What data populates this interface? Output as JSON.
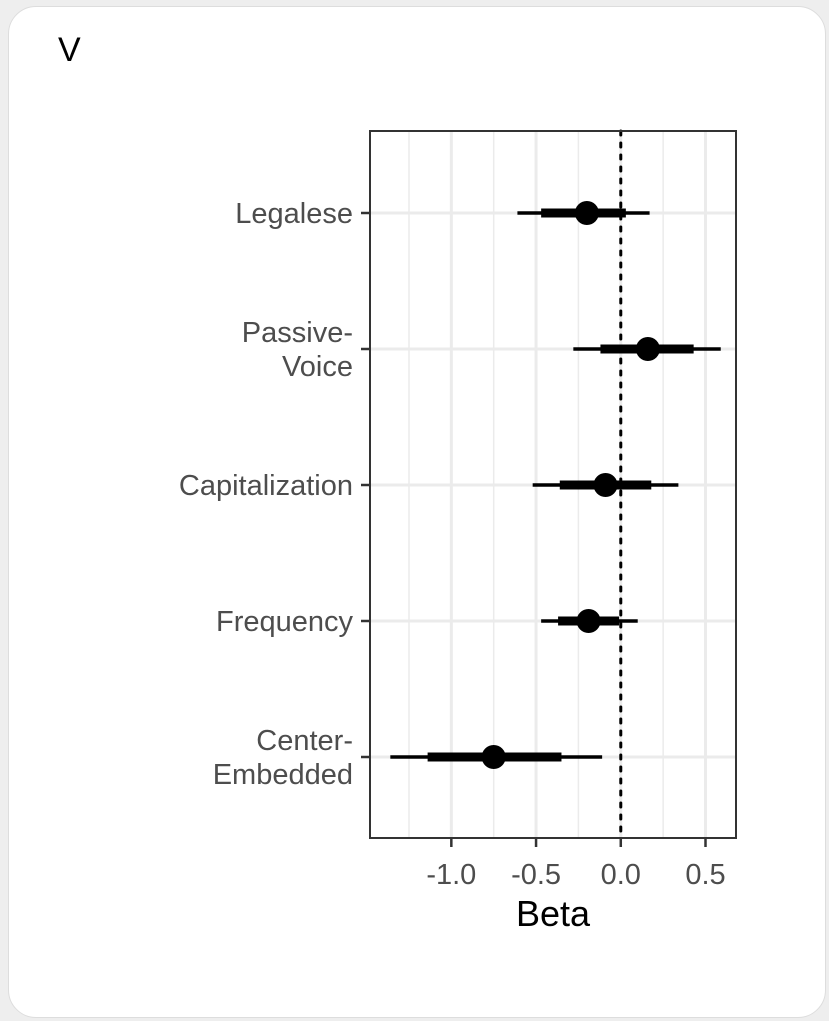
{
  "panel_label": "V",
  "chart_data": {
    "type": "scatter",
    "subtype": "coefficient-plot",
    "xlabel": "Beta",
    "ylabel": "",
    "xlim": [
      -1.48,
      0.68
    ],
    "x_ticks": [
      -1.0,
      -0.5,
      0.0,
      0.5
    ],
    "x_tick_labels": [
      "-1.0",
      "-0.5",
      "0.0",
      "0.5"
    ],
    "reference_line_x": 0,
    "reference_line_style": "dotted",
    "grid": true,
    "categories": [
      {
        "label_lines": [
          "Legalese"
        ],
        "estimate": -0.2,
        "inner": [
          -0.47,
          0.03
        ],
        "outer": [
          -0.61,
          0.17
        ]
      },
      {
        "label_lines": [
          "Passive-",
          "Voice"
        ],
        "estimate": 0.16,
        "inner": [
          -0.12,
          0.43
        ],
        "outer": [
          -0.28,
          0.59
        ]
      },
      {
        "label_lines": [
          "Capitalization"
        ],
        "estimate": -0.09,
        "inner": [
          -0.36,
          0.18
        ],
        "outer": [
          -0.52,
          0.34
        ]
      },
      {
        "label_lines": [
          "Frequency"
        ],
        "estimate": -0.19,
        "inner": [
          -0.37,
          -0.01
        ],
        "outer": [
          -0.47,
          0.1
        ]
      },
      {
        "label_lines": [
          "Center-",
          "Embedded"
        ],
        "estimate": -0.75,
        "inner": [
          -1.14,
          -0.35
        ],
        "outer": [
          -1.36,
          -0.11
        ]
      }
    ],
    "colors": {
      "marks": "#000000",
      "grid": "#ebebeb",
      "panel_border": "#333333",
      "labels": "#4d4d4d"
    }
  }
}
